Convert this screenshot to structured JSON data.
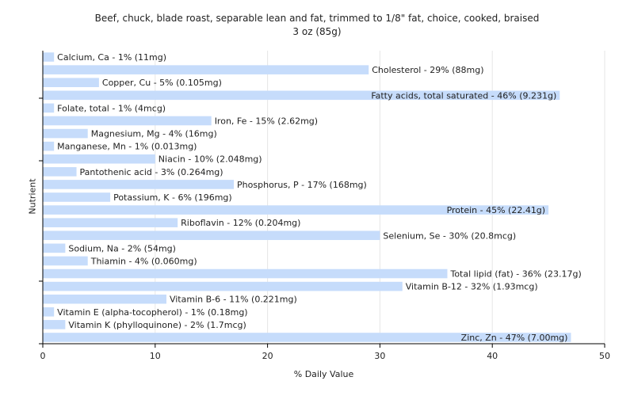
{
  "chart_data": {
    "type": "bar",
    "orientation": "horizontal",
    "title": "Beef, chuck, blade roast, separable lean and fat, trimmed to 1/8\" fat, choice, cooked, braised",
    "subtitle": "3 oz (85g)",
    "xlabel": "% Daily Value",
    "ylabel": "Nutrient",
    "xlim": [
      0,
      50
    ],
    "xticks": [
      0,
      10,
      20,
      30,
      40,
      50
    ],
    "grid": "vertical",
    "bar_color": "#c6dcfb",
    "categories": [
      "Calcium, Ca",
      "Cholesterol",
      "Copper, Cu",
      "Fatty acids, total saturated",
      "Folate, total",
      "Iron, Fe",
      "Magnesium, Mg",
      "Manganese, Mn",
      "Niacin",
      "Pantothenic acid",
      "Phosphorus, P",
      "Potassium, K",
      "Protein",
      "Riboflavin",
      "Selenium, Se",
      "Sodium, Na",
      "Thiamin",
      "Total lipid (fat)",
      "Vitamin B-12",
      "Vitamin B-6",
      "Vitamin E (alpha-tocopherol)",
      "Vitamin K (phylloquinone)",
      "Zinc, Zn"
    ],
    "values": [
      1,
      29,
      5,
      46,
      1,
      15,
      4,
      1,
      10,
      3,
      17,
      6,
      45,
      12,
      30,
      2,
      4,
      36,
      32,
      11,
      1,
      2,
      47
    ],
    "data_labels": [
      "Calcium, Ca - 1% (11mg)",
      "Cholesterol - 29% (88mg)",
      "Copper, Cu - 5% (0.105mg)",
      "Fatty acids, total saturated - 46% (9.231g)",
      "Folate, total - 1% (4mcg)",
      "Iron, Fe - 15% (2.62mg)",
      "Magnesium, Mg - 4% (16mg)",
      "Manganese, Mn - 1% (0.013mg)",
      "Niacin - 10% (2.048mg)",
      "Pantothenic acid - 3% (0.264mg)",
      "Phosphorus, P - 17% (168mg)",
      "Potassium, K - 6% (196mg)",
      "Protein - 45% (22.41g)",
      "Riboflavin - 12% (0.204mg)",
      "Selenium, Se - 30% (20.8mcg)",
      "Sodium, Na - 2% (54mg)",
      "Thiamin - 4% (0.060mg)",
      "Total lipid (fat) - 36% (23.17g)",
      "Vitamin B-12 - 32% (1.93mcg)",
      "Vitamin B-6 - 11% (0.221mg)",
      "Vitamin E (alpha-tocopherol) - 1% (0.18mg)",
      "Vitamin K (phylloquinone) - 2% (1.7mcg)",
      "Zinc, Zn - 47% (7.00mg)"
    ]
  }
}
